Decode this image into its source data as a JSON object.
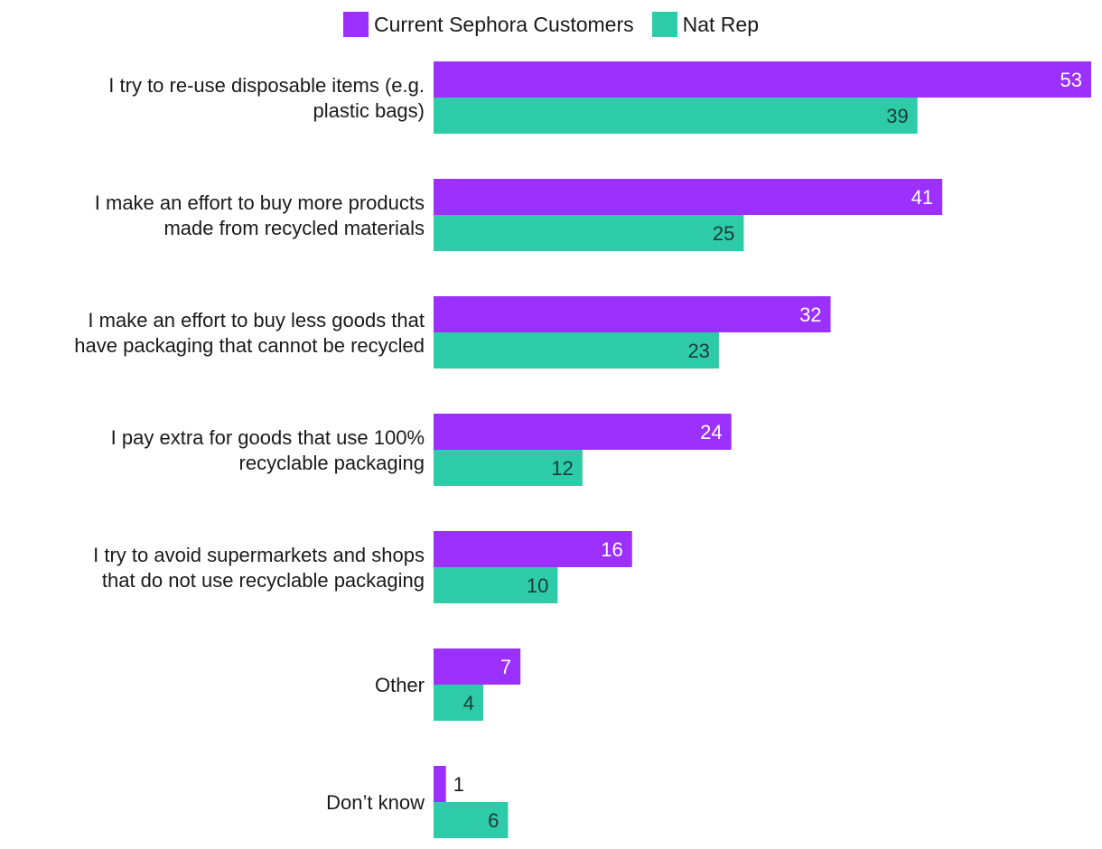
{
  "chart_data": {
    "type": "bar",
    "orientation": "horizontal",
    "title": "",
    "xlabel": "",
    "ylabel": "",
    "xlim": [
      0,
      53
    ],
    "grid": false,
    "legend_position": "top-center",
    "categories": [
      [
        "I try to re-use disposable items (e.g.",
        "plastic bags)"
      ],
      [
        "I make an effort to buy more products",
        "made from recycled materials"
      ],
      [
        "I make an effort to buy less goods that",
        "have packaging that cannot be recycled"
      ],
      [
        "I pay extra for goods that use 100%",
        "recyclable packaging"
      ],
      [
        "I try to avoid supermarkets and shops",
        "that do not use recyclable packaging"
      ],
      [
        "Other"
      ],
      [
        "Don’t know"
      ]
    ],
    "series": [
      {
        "name": "Current Sephora Customers",
        "color": "#9B30FF",
        "values": [
          53,
          41,
          32,
          24,
          16,
          7,
          1
        ]
      },
      {
        "name": "Nat Rep",
        "color": "#2ECBA8",
        "values": [
          39,
          25,
          23,
          12,
          10,
          4,
          6
        ]
      }
    ]
  }
}
